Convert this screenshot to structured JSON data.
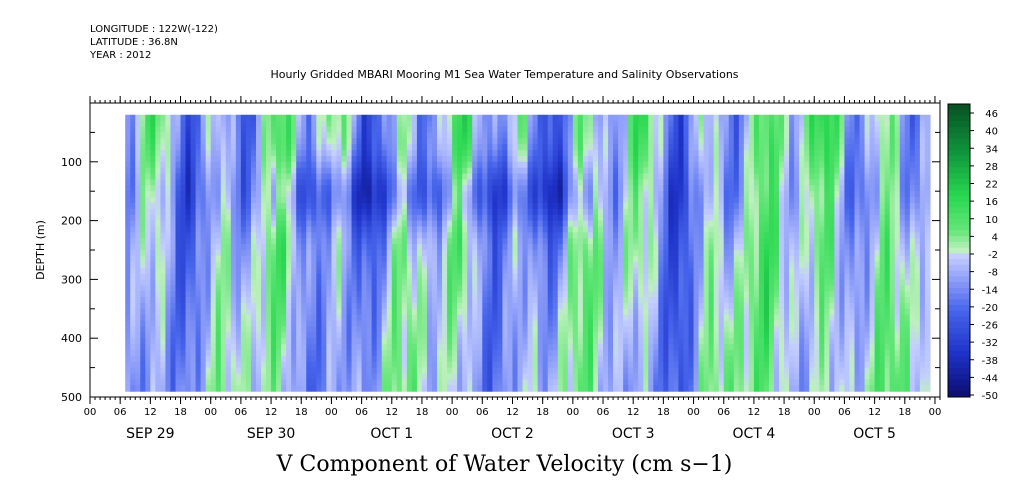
{
  "header": {
    "longitude": "LONGITUDE : 122W(-122)",
    "latitude": "LATITUDE : 36.8N",
    "year": "YEAR : 2012"
  },
  "chart_data": {
    "type": "heatmap",
    "title": "Hourly Gridded MBARI Mooring M1 Sea Water Temperature and Salinity Observations",
    "xlabel": "V Component of Water Velocity (cm s−1)",
    "ylabel": "DEPTH (m)",
    "y_ticks": [
      100,
      200,
      300,
      400,
      500
    ],
    "y_range_m": [
      500,
      0
    ],
    "data_depth_range_m": [
      20,
      490
    ],
    "x_range_hours": [
      0,
      169
    ],
    "data_start_hour": 7,
    "hour_tick_labels": [
      "00",
      "06",
      "12",
      "18",
      "00",
      "06",
      "12",
      "18",
      "00",
      "06",
      "12",
      "18",
      "00",
      "06",
      "12",
      "18",
      "00",
      "06",
      "12",
      "18",
      "00",
      "06",
      "12",
      "18",
      "00",
      "06",
      "12",
      "18",
      "00"
    ],
    "day_labels": [
      "SEP 29",
      "SEP 30",
      "OCT  1",
      "OCT  2",
      "OCT  3",
      "OCT  4",
      "OCT  5"
    ],
    "colorbar_labels": [
      "46",
      "40",
      "34",
      "28",
      "22",
      "16",
      "10",
      "4",
      "-2",
      "-8",
      "-14",
      "-20",
      "-26",
      "-32",
      "-38",
      "-44",
      "-50"
    ],
    "colorbar_range": [
      -50,
      52
    ],
    "colors": {
      "strong_negative": "#141470",
      "negative": "#3c5ae6",
      "weak_negative": "#a8b4ff",
      "weak_positive": "#b4f0b0",
      "positive": "#32dc5a",
      "strong_positive": "#0a5a28"
    }
  }
}
